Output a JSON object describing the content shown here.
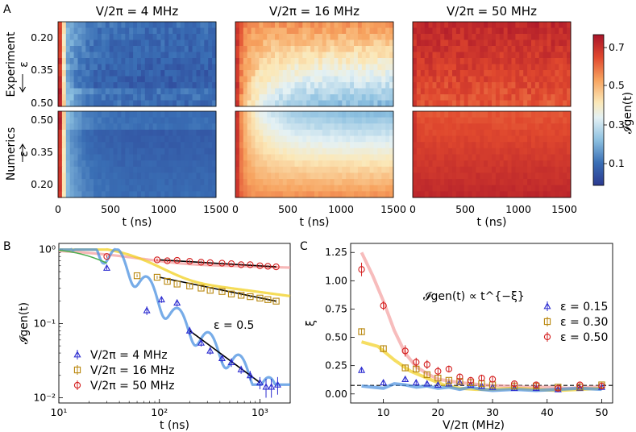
{
  "panel_letters": [
    "A",
    "B",
    "C"
  ],
  "panel_a": {
    "col_titles": [
      "V/2π = 4 MHz",
      "V/2π = 16 MHz",
      "V/2π = 50 MHz"
    ],
    "row_labels": [
      "Experiment",
      "Numerics"
    ],
    "eps_label": "ε",
    "eps_ticks_top": [
      "0.20",
      "0.35",
      "0.50"
    ],
    "eps_ticks_bottom": [
      "0.50",
      "0.35",
      "0.20"
    ],
    "x_ticks": [
      "0",
      "500",
      "1000",
      "1500"
    ],
    "xlabel": "t (ns)",
    "colorbar": {
      "label": "𝓘gen(t)",
      "ticks": [
        "0.7",
        "0.5",
        "0.3",
        "0.1"
      ],
      "colors": {
        "low": "#2b3990",
        "mid": "#f5f0d0",
        "high": "#b2182b"
      }
    }
  },
  "chart_data": [
    {
      "id": "B",
      "type": "line",
      "title": "",
      "xlabel": "t (ns)",
      "ylabel": "𝓘gen(t)",
      "xscale": "log",
      "yscale": "log",
      "xlim": [
        10,
        2000
      ],
      "ylim": [
        0.0085,
        1.2
      ],
      "x_ticks": [
        "10¹",
        "10²",
        "10³"
      ],
      "y_ticks": [
        "10⁰",
        "10⁻¹",
        "10⁻²"
      ],
      "annotation": "ε = 0.5",
      "legend_position": "lower-left",
      "series": [
        {
          "name": "V/2π = 4 MHz",
          "marker": "triangle",
          "color": "#2b2bd0",
          "line_color": "#4a90e0",
          "x": [
            30,
            75,
            105,
            150,
            200,
            260,
            320,
            420,
            520,
            650,
            800,
            1000,
            1150,
            1300,
            1500
          ],
          "y": [
            0.56,
            0.15,
            0.21,
            0.19,
            0.08,
            0.055,
            0.043,
            0.034,
            0.03,
            0.024,
            0.02,
            0.016,
            0.014,
            0.014,
            0.015
          ],
          "err": [
            0.03,
            0.02,
            0.02,
            0.02,
            0.01,
            0.006,
            0.005,
            0.004,
            0.004,
            0.003,
            0.003,
            0.003,
            0.004,
            0.004,
            0.004
          ]
        },
        {
          "name": "V/2π = 16 MHz",
          "marker": "square",
          "color": "#b8860b",
          "line_color": "#f2d020",
          "x": [
            60,
            95,
            120,
            150,
            200,
            260,
            320,
            420,
            520,
            650,
            800,
            1000,
            1200,
            1450
          ],
          "y": [
            0.44,
            0.42,
            0.37,
            0.34,
            0.32,
            0.3,
            0.28,
            0.27,
            0.25,
            0.24,
            0.23,
            0.22,
            0.21,
            0.2
          ],
          "err": [
            0.02,
            0.02,
            0.02,
            0.02,
            0.015,
            0.015,
            0.015,
            0.01,
            0.01,
            0.01,
            0.01,
            0.01,
            0.01,
            0.01
          ]
        },
        {
          "name": "V/2π = 50 MHz",
          "marker": "circle",
          "color": "#d42020",
          "line_color": "#f08080",
          "x": [
            30,
            95,
            120,
            150,
            200,
            260,
            320,
            420,
            520,
            650,
            800,
            1000,
            1200,
            1450
          ],
          "y": [
            0.8,
            0.72,
            0.7,
            0.71,
            0.69,
            0.67,
            0.66,
            0.65,
            0.64,
            0.62,
            0.62,
            0.6,
            0.59,
            0.58
          ],
          "err": [
            0.03,
            0.03,
            0.03,
            0.03,
            0.03,
            0.03,
            0.02,
            0.02,
            0.02,
            0.02,
            0.02,
            0.02,
            0.02,
            0.02
          ]
        }
      ]
    },
    {
      "id": "C",
      "type": "line",
      "title": "",
      "xlabel": "V/2π (MHz)",
      "ylabel": "ξ",
      "xlim": [
        4,
        52
      ],
      "ylim": [
        -0.08,
        1.33
      ],
      "x_ticks": [
        "10",
        "20",
        "30",
        "40",
        "50"
      ],
      "y_ticks": [
        "0.00",
        "0.25",
        "0.50",
        "0.75",
        "1.00",
        "1.25"
      ],
      "annotation": "𝓘gen(t) ∝ t^{−ξ}",
      "reference_line": 0.075,
      "legend_position": "right",
      "series": [
        {
          "name": "ε = 0.15",
          "marker": "triangle",
          "color": "#2b2bd0",
          "line_color": "#4a90e0",
          "x": [
            6,
            10,
            14,
            16,
            18,
            20,
            22,
            24,
            26,
            28,
            30,
            34,
            38,
            42,
            46,
            50
          ],
          "y": [
            0.21,
            0.1,
            0.13,
            0.1,
            0.09,
            0.08,
            0.09,
            0.1,
            0.08,
            0.07,
            0.06,
            0.05,
            0.05,
            0.04,
            0.05,
            0.06
          ],
          "err": [
            0.02,
            0.02,
            0.02,
            0.02,
            0.02,
            0.02,
            0.02,
            0.02,
            0.02,
            0.02,
            0.02,
            0.02,
            0.02,
            0.02,
            0.02,
            0.02
          ]
        },
        {
          "name": "ε = 0.30",
          "marker": "square",
          "color": "#b8860b",
          "line_color": "#f2d020",
          "x": [
            6,
            10,
            14,
            16,
            18,
            20,
            22,
            24,
            26,
            28,
            30,
            34,
            38,
            42,
            46,
            50
          ],
          "y": [
            0.55,
            0.4,
            0.23,
            0.22,
            0.17,
            0.14,
            0.12,
            0.11,
            0.1,
            0.09,
            0.08,
            0.07,
            0.07,
            0.06,
            0.06,
            0.08
          ],
          "err": [
            0.03,
            0.03,
            0.03,
            0.03,
            0.02,
            0.02,
            0.02,
            0.02,
            0.02,
            0.02,
            0.02,
            0.02,
            0.02,
            0.02,
            0.02,
            0.02
          ]
        },
        {
          "name": "ε = 0.50",
          "marker": "circle",
          "color": "#d42020",
          "line_color": "#f08080",
          "x": [
            6,
            10,
            14,
            16,
            18,
            20,
            22,
            24,
            26,
            28,
            30,
            34,
            38,
            42,
            46,
            50
          ],
          "y": [
            1.1,
            0.78,
            0.38,
            0.28,
            0.26,
            0.2,
            0.22,
            0.15,
            0.12,
            0.14,
            0.13,
            0.09,
            0.08,
            0.05,
            0.08,
            0.07
          ],
          "err": [
            0.06,
            0.04,
            0.05,
            0.04,
            0.04,
            0.04,
            0.03,
            0.03,
            0.03,
            0.03,
            0.03,
            0.02,
            0.02,
            0.02,
            0.02,
            0.02
          ]
        }
      ]
    }
  ]
}
